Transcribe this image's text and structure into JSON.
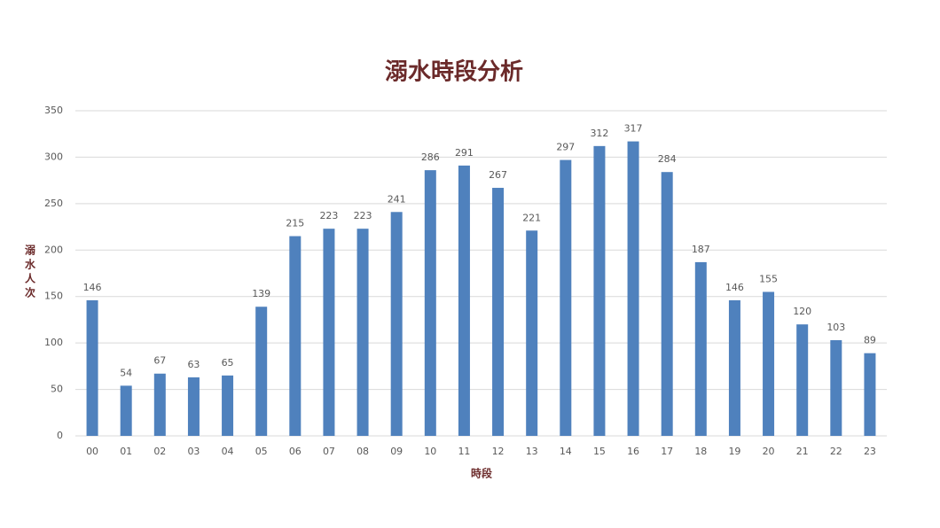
{
  "chart_data": {
    "type": "bar",
    "title": "溺水時段分析",
    "x_label": "時段",
    "y_label": "溺水人次",
    "categories": [
      "00",
      "01",
      "02",
      "03",
      "04",
      "05",
      "06",
      "07",
      "08",
      "09",
      "10",
      "11",
      "12",
      "13",
      "14",
      "15",
      "16",
      "17",
      "18",
      "19",
      "20",
      "21",
      "22",
      "23"
    ],
    "values": [
      146,
      54,
      67,
      63,
      65,
      139,
      215,
      223,
      223,
      241,
      286,
      291,
      267,
      221,
      297,
      312,
      317,
      284,
      187,
      146,
      155,
      120,
      103,
      89
    ],
    "color": "#4f81bd",
    "ylim": [
      0,
      350
    ],
    "yticks": [
      0,
      50,
      100,
      150,
      200,
      250,
      300,
      350
    ],
    "grid": true
  }
}
